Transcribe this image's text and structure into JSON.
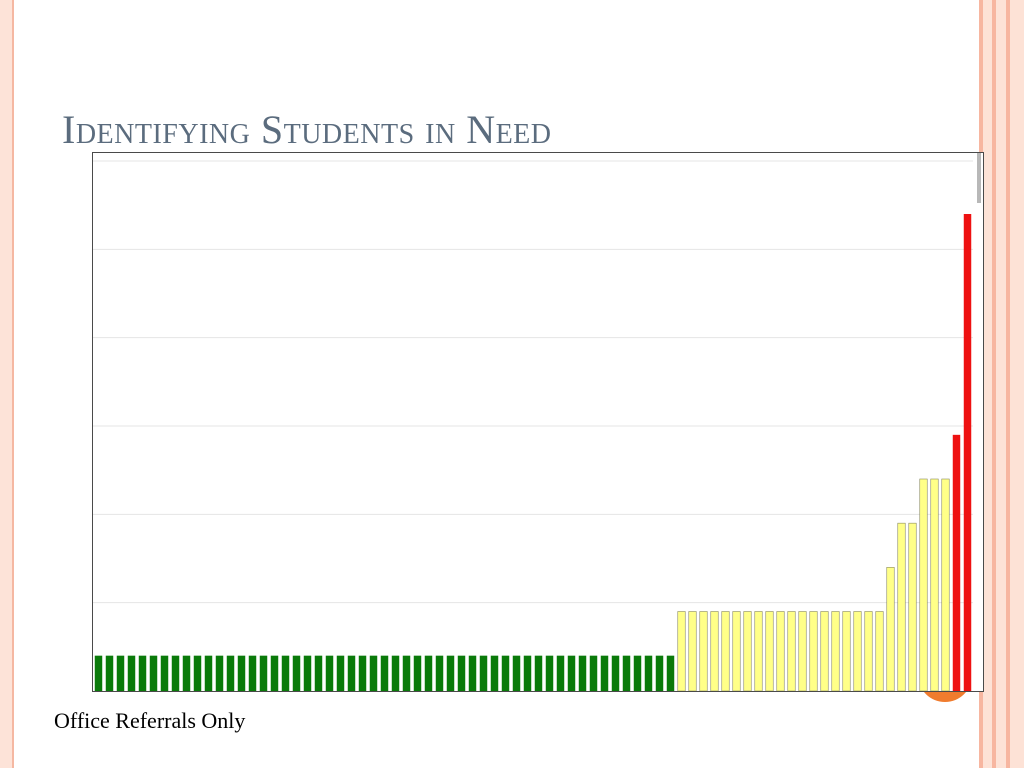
{
  "slide": {
    "title": "Identifying Students in Need",
    "caption": "Office Referrals Only"
  },
  "colors": {
    "green": "#0a7a0a",
    "yellow": "#ffff88",
    "red": "#ee1111",
    "grid": "#e4e4e4",
    "bar_edge": "#8a8a60",
    "title": "#5b6c7e",
    "accent_orange": "#f07c2e"
  },
  "chart_data": {
    "type": "bar",
    "ylim": [
      0,
      6
    ],
    "grid": true,
    "gridlines": [
      1,
      2,
      3,
      4,
      5,
      6
    ],
    "values": [
      0.4,
      0.4,
      0.4,
      0.4,
      0.4,
      0.4,
      0.4,
      0.4,
      0.4,
      0.4,
      0.4,
      0.4,
      0.4,
      0.4,
      0.4,
      0.4,
      0.4,
      0.4,
      0.4,
      0.4,
      0.4,
      0.4,
      0.4,
      0.4,
      0.4,
      0.4,
      0.4,
      0.4,
      0.4,
      0.4,
      0.4,
      0.4,
      0.4,
      0.4,
      0.4,
      0.4,
      0.4,
      0.4,
      0.4,
      0.4,
      0.4,
      0.4,
      0.4,
      0.4,
      0.4,
      0.4,
      0.4,
      0.4,
      0.4,
      0.4,
      0.4,
      0.4,
      0.4,
      0.9,
      0.9,
      0.9,
      0.9,
      0.9,
      0.9,
      0.9,
      0.9,
      0.9,
      0.9,
      0.9,
      0.9,
      0.9,
      0.9,
      0.9,
      0.9,
      0.9,
      0.9,
      0.9,
      1.4,
      1.9,
      1.9,
      2.4,
      2.4,
      2.4,
      2.9,
      5.4
    ],
    "colors": [
      "green",
      "green",
      "green",
      "green",
      "green",
      "green",
      "green",
      "green",
      "green",
      "green",
      "green",
      "green",
      "green",
      "green",
      "green",
      "green",
      "green",
      "green",
      "green",
      "green",
      "green",
      "green",
      "green",
      "green",
      "green",
      "green",
      "green",
      "green",
      "green",
      "green",
      "green",
      "green",
      "green",
      "green",
      "green",
      "green",
      "green",
      "green",
      "green",
      "green",
      "green",
      "green",
      "green",
      "green",
      "green",
      "green",
      "green",
      "green",
      "green",
      "green",
      "green",
      "green",
      "green",
      "yellow",
      "yellow",
      "yellow",
      "yellow",
      "yellow",
      "yellow",
      "yellow",
      "yellow",
      "yellow",
      "yellow",
      "yellow",
      "yellow",
      "yellow",
      "yellow",
      "yellow",
      "yellow",
      "yellow",
      "yellow",
      "yellow",
      "yellow",
      "yellow",
      "yellow",
      "yellow",
      "yellow",
      "yellow",
      "red",
      "red"
    ]
  }
}
